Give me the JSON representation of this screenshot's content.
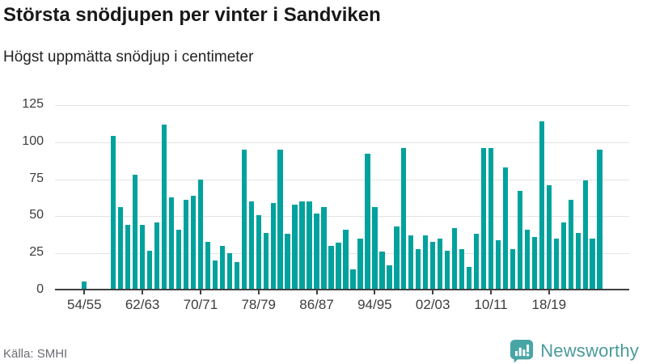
{
  "header": {
    "title": "Största snödjupen per vinter i Sandviken",
    "subtitle": "Högst uppmätta snödjup i centimeter"
  },
  "footer": {
    "source": "Källa: SMHI",
    "brand": "Newsworthy",
    "logo_icon": "bar-chart-speech-bubble-icon"
  },
  "colors": {
    "bar": "#00a29d",
    "grid": "#e3e3e3",
    "axis": "#404040",
    "brand_icon": "#48a5a6",
    "brand_text": "#4a9a9b"
  },
  "chart_data": {
    "type": "bar",
    "title": "Största snödjupen per vinter i Sandviken",
    "subtitle": "Högst uppmätta snödjup i centimeter",
    "xlabel": "",
    "ylabel": "snödjup i centimeter",
    "ylim": [
      0,
      125
    ],
    "y_ticks": [
      0,
      25,
      50,
      75,
      100,
      125
    ],
    "grid": "horizontal",
    "legend": "none",
    "x_range_winters": "1954/55 till 2025/26, data saknas 1955/56-1957/58",
    "x_ticks": [
      {
        "label": "54/55",
        "year": 1954
      },
      {
        "label": "62/63",
        "year": 1962
      },
      {
        "label": "70/71",
        "year": 1970
      },
      {
        "label": "78/79",
        "year": 1978
      },
      {
        "label": "86/87",
        "year": 1986
      },
      {
        "label": "94/95",
        "year": 1994
      },
      {
        "label": "02/03",
        "year": 2002
      },
      {
        "label": "10/11",
        "year": 2010
      },
      {
        "label": "18/19",
        "year": 2018
      }
    ],
    "points": [
      {
        "winter": "54/55",
        "year": 1954,
        "value": 6
      },
      {
        "winter": "58/59",
        "year": 1958,
        "value": 104
      },
      {
        "winter": "59/60",
        "year": 1959,
        "value": 56
      },
      {
        "winter": "60/61",
        "year": 1960,
        "value": 44
      },
      {
        "winter": "61/62",
        "year": 1961,
        "value": 78
      },
      {
        "winter": "62/63",
        "year": 1962,
        "value": 44
      },
      {
        "winter": "63/64",
        "year": 1963,
        "value": 27
      },
      {
        "winter": "64/65",
        "year": 1964,
        "value": 46
      },
      {
        "winter": "65/66",
        "year": 1965,
        "value": 112
      },
      {
        "winter": "66/67",
        "year": 1966,
        "value": 63
      },
      {
        "winter": "67/68",
        "year": 1967,
        "value": 41
      },
      {
        "winter": "68/69",
        "year": 1968,
        "value": 61
      },
      {
        "winter": "69/70",
        "year": 1969,
        "value": 64
      },
      {
        "winter": "70/71",
        "year": 1970,
        "value": 75
      },
      {
        "winter": "71/72",
        "year": 1971,
        "value": 33
      },
      {
        "winter": "72/73",
        "year": 1972,
        "value": 20
      },
      {
        "winter": "73/74",
        "year": 1973,
        "value": 30
      },
      {
        "winter": "74/75",
        "year": 1974,
        "value": 25
      },
      {
        "winter": "75/76",
        "year": 1975,
        "value": 19
      },
      {
        "winter": "76/77",
        "year": 1976,
        "value": 95
      },
      {
        "winter": "77/78",
        "year": 1977,
        "value": 60
      },
      {
        "winter": "78/79",
        "year": 1978,
        "value": 51
      },
      {
        "winter": "79/80",
        "year": 1979,
        "value": 39
      },
      {
        "winter": "80/81",
        "year": 1980,
        "value": 59
      },
      {
        "winter": "81/82",
        "year": 1981,
        "value": 95
      },
      {
        "winter": "82/83",
        "year": 1982,
        "value": 38
      },
      {
        "winter": "83/84",
        "year": 1983,
        "value": 58
      },
      {
        "winter": "84/85",
        "year": 1984,
        "value": 60
      },
      {
        "winter": "85/86",
        "year": 1985,
        "value": 60
      },
      {
        "winter": "86/87",
        "year": 1986,
        "value": 52
      },
      {
        "winter": "87/88",
        "year": 1987,
        "value": 56
      },
      {
        "winter": "88/89",
        "year": 1988,
        "value": 30
      },
      {
        "winter": "89/90",
        "year": 1989,
        "value": 32
      },
      {
        "winter": "90/91",
        "year": 1990,
        "value": 41
      },
      {
        "winter": "91/92",
        "year": 1991,
        "value": 14
      },
      {
        "winter": "92/93",
        "year": 1992,
        "value": 35
      },
      {
        "winter": "93/94",
        "year": 1993,
        "value": 92
      },
      {
        "winter": "94/95",
        "year": 1994,
        "value": 56
      },
      {
        "winter": "95/96",
        "year": 1995,
        "value": 26
      },
      {
        "winter": "96/97",
        "year": 1996,
        "value": 17
      },
      {
        "winter": "97/98",
        "year": 1997,
        "value": 43
      },
      {
        "winter": "98/99",
        "year": 1998,
        "value": 96
      },
      {
        "winter": "99/00",
        "year": 1999,
        "value": 37
      },
      {
        "winter": "00/01",
        "year": 2000,
        "value": 28
      },
      {
        "winter": "01/02",
        "year": 2001,
        "value": 37
      },
      {
        "winter": "02/03",
        "year": 2002,
        "value": 33
      },
      {
        "winter": "03/04",
        "year": 2003,
        "value": 35
      },
      {
        "winter": "04/05",
        "year": 2004,
        "value": 27
      },
      {
        "winter": "05/06",
        "year": 2005,
        "value": 42
      },
      {
        "winter": "06/07",
        "year": 2006,
        "value": 28
      },
      {
        "winter": "07/08",
        "year": 2007,
        "value": 16
      },
      {
        "winter": "08/09",
        "year": 2008,
        "value": 38
      },
      {
        "winter": "09/10",
        "year": 2009,
        "value": 96
      },
      {
        "winter": "10/11",
        "year": 2010,
        "value": 96
      },
      {
        "winter": "11/12",
        "year": 2011,
        "value": 34
      },
      {
        "winter": "12/13",
        "year": 2012,
        "value": 83
      },
      {
        "winter": "13/14",
        "year": 2013,
        "value": 28
      },
      {
        "winter": "14/15",
        "year": 2014,
        "value": 67
      },
      {
        "winter": "15/16",
        "year": 2015,
        "value": 41
      },
      {
        "winter": "16/17",
        "year": 2016,
        "value": 36
      },
      {
        "winter": "17/18",
        "year": 2017,
        "value": 114
      },
      {
        "winter": "18/19",
        "year": 2018,
        "value": 71
      },
      {
        "winter": "19/20",
        "year": 2019,
        "value": 35
      },
      {
        "winter": "20/21",
        "year": 2020,
        "value": 46
      },
      {
        "winter": "21/22",
        "year": 2021,
        "value": 61
      },
      {
        "winter": "22/23",
        "year": 2022,
        "value": 39
      },
      {
        "winter": "23/24",
        "year": 2023,
        "value": 74
      },
      {
        "winter": "24/25",
        "year": 2024,
        "value": 35
      },
      {
        "winter": "25/26",
        "year": 2025,
        "value": 95
      }
    ]
  }
}
